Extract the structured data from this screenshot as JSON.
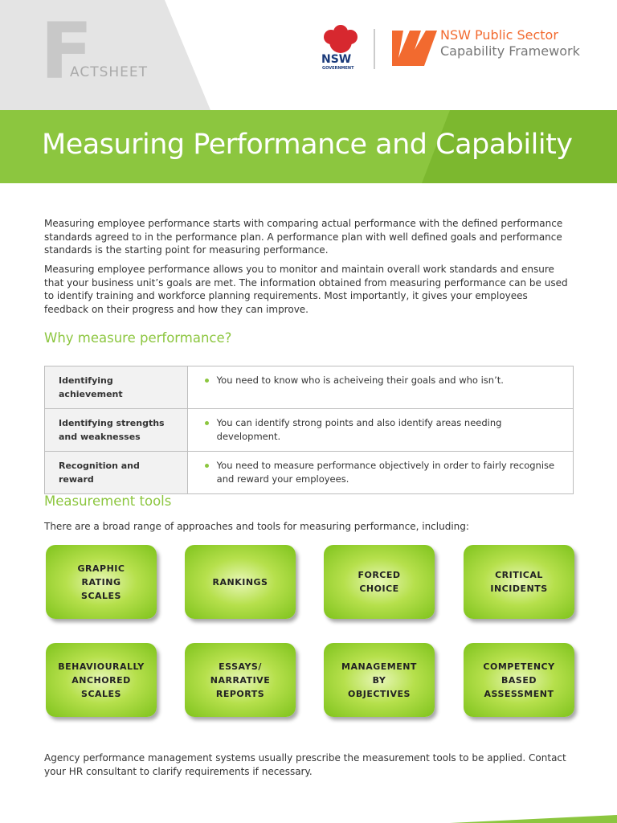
{
  "header": {
    "factsheet_letter": "F",
    "factsheet_rest": "ACTSHEET",
    "nsw_logo": "NSW",
    "nsw_logo_sub": "GOVERNMENT",
    "framework_line1": "NSW Public Sector",
    "framework_line2": "Capability Framework"
  },
  "title": "Measuring Performance and Capability",
  "intro": [
    "Measuring employee performance starts with comparing actual performance with the defined performance standards agreed to in the performance plan. A performance plan with well defined goals and performance standards is the starting point for measuring performance.",
    "Measuring employee performance allows you to monitor and maintain overall work standards and ensure that your business unit’s goals are met. The information obtained from measuring performance can be used to identify training and workforce planning requirements. Most importantly, it gives your employees feedback on their progress and how they can improve."
  ],
  "why": {
    "heading": "Why measure performance?",
    "table": {
      "rows": [
        [
          "Identifying achievement",
          "You need to know who is acheiveing their goals and who isn’t."
        ],
        [
          "Identifying strengths and weaknesses",
          "You can identify strong points and also identify areas needing development."
        ],
        [
          "Recognition and reward",
          "You need to measure performance objectively in order to fairly recognise and reward your employees."
        ]
      ]
    }
  },
  "tools": {
    "heading": "Measurement tools",
    "intro": "There are a broad range of approaches and tools for measuring performance, including:",
    "items": [
      [
        "GRAPHIC",
        "RATING",
        "SCALES"
      ],
      [
        "RANKINGS"
      ],
      [
        "FORCED",
        "CHOICE"
      ],
      [
        "CRITICAL",
        "INCIDENTS"
      ],
      [
        "BEHAVIOURALLY",
        "ANCHORED",
        "SCALES"
      ],
      [
        "ESSAYS/",
        "NARRATIVE",
        "REPORTS"
      ],
      [
        "MANAGEMENT",
        "BY",
        "OBJECTIVES"
      ],
      [
        "COMPETENCY",
        "BASED",
        "ASSESSMENT"
      ]
    ]
  },
  "footer": "Agency performance management systems usually prescribe the measurement tools to be applied. Contact your HR consultant to clarify requirements if necessary."
}
